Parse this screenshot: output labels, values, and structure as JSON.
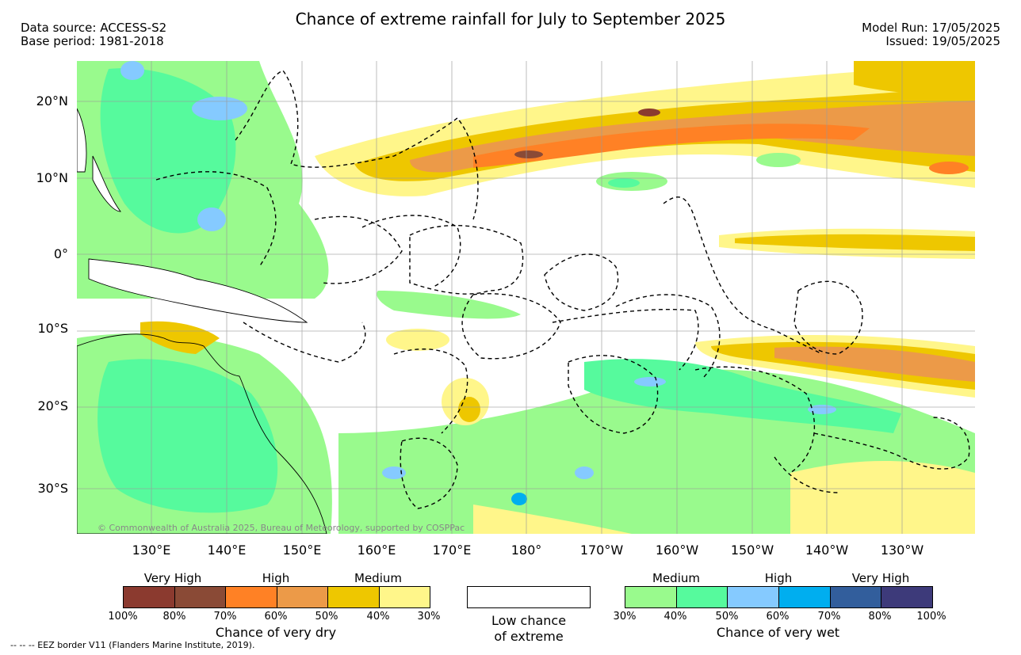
{
  "header": {
    "title": "Chance of extreme rainfall for July to September 2025",
    "data_source": "Data source: ACCESS-S2",
    "base_period": "Base period: 1981-2018",
    "model_run": "Model Run: 17/05/2025",
    "issued": "Issued: 19/05/2025"
  },
  "map": {
    "copyright": "© Commonwealth of Australia 2025, Bureau of Meteorology, supported by COSPPac",
    "lat_labels": [
      "20°N",
      "10°N",
      "0°",
      "10°S",
      "20°S",
      "30°S"
    ],
    "lon_labels": [
      "130°E",
      "140°E",
      "150°E",
      "160°E",
      "170°E",
      "180°",
      "170°W",
      "160°W",
      "150°W",
      "140°W",
      "130°W"
    ],
    "colors": {
      "land": "#ffffff",
      "grid": "#9a9a9a",
      "coast": "#000000",
      "eez": "#000000"
    }
  },
  "legend": {
    "dry": {
      "title": "Chance of very dry",
      "categories": [
        "Very High",
        "High",
        "Medium"
      ],
      "percentages": [
        "100%",
        "80%",
        "70%",
        "60%",
        "50%",
        "40%",
        "30%"
      ],
      "colors": [
        "#8b3a2f",
        "#8a4a36",
        "#ff8125",
        "#ec9a48",
        "#eec700",
        "#fff68a"
      ]
    },
    "low": {
      "line1": "Low chance",
      "line2": "of extreme",
      "color": "#ffffff"
    },
    "wet": {
      "title": "Chance of very wet",
      "categories": [
        "Medium",
        "High",
        "Very High"
      ],
      "percentages": [
        "30%",
        "40%",
        "50%",
        "60%",
        "70%",
        "80%",
        "100%"
      ],
      "colors": [
        "#99fa8d",
        "#56fa9d",
        "#85caff",
        "#00aeef",
        "#325e9c",
        "#3d3a7a"
      ]
    }
  },
  "footer": {
    "eez_note": "-- -- -- EEZ border V11 (Flanders Marine Institute, 2019)."
  }
}
